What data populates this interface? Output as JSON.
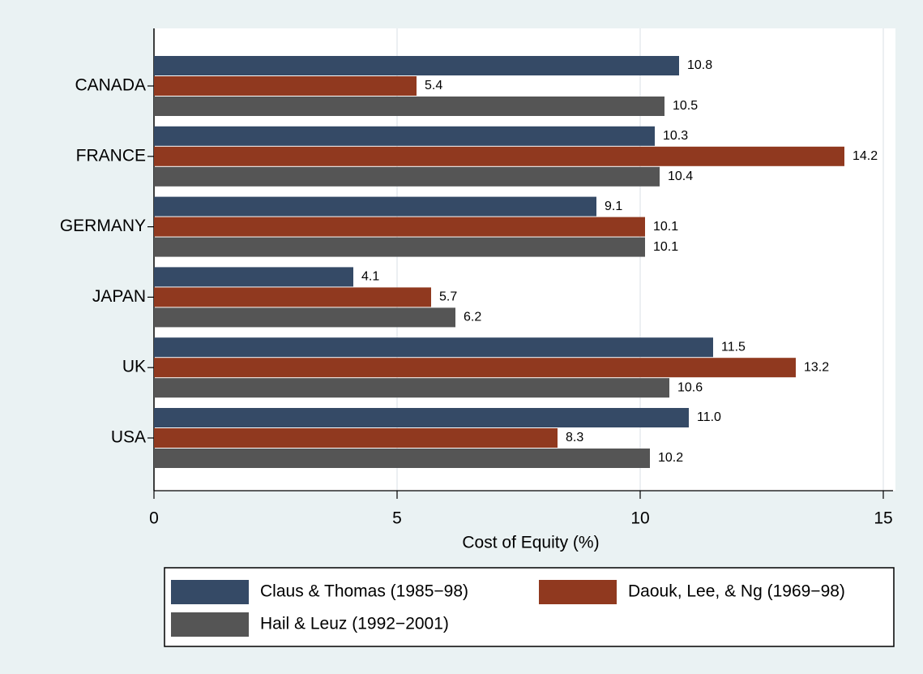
{
  "chart_data": {
    "type": "barh",
    "categories": [
      "CANADA",
      "FRANCE",
      "GERMANY",
      "JAPAN",
      "UK",
      "USA"
    ],
    "series": [
      {
        "name": "Claus & Thomas (1985−98)",
        "color": "#354a66",
        "values": [
          10.8,
          10.3,
          9.1,
          4.1,
          11.5,
          11.0
        ],
        "value_labels": [
          "10.8",
          "10.3",
          "9.1",
          "4.1",
          "11.5",
          "11.0"
        ]
      },
      {
        "name": "Daouk, Lee, & Ng (1969−98)",
        "color": "#90391f",
        "values": [
          5.4,
          14.2,
          10.1,
          5.7,
          13.2,
          8.3
        ],
        "value_labels": [
          "5.4",
          "14.2",
          "10.1",
          "5.7",
          "13.2",
          "8.3"
        ]
      },
      {
        "name": "Hail & Leuz (1992−2001)",
        "color": "#555555",
        "values": [
          10.5,
          10.4,
          10.1,
          6.2,
          10.6,
          10.2
        ],
        "value_labels": [
          "10.5",
          "10.4",
          "10.1",
          "6.2",
          "10.6",
          "10.2"
        ]
      }
    ],
    "x_label": "Cost of Equity (%)",
    "xlim": [
      0,
      15.2
    ],
    "xticks": [
      0,
      5,
      10,
      15
    ],
    "grid": true,
    "legend": "bottom"
  }
}
